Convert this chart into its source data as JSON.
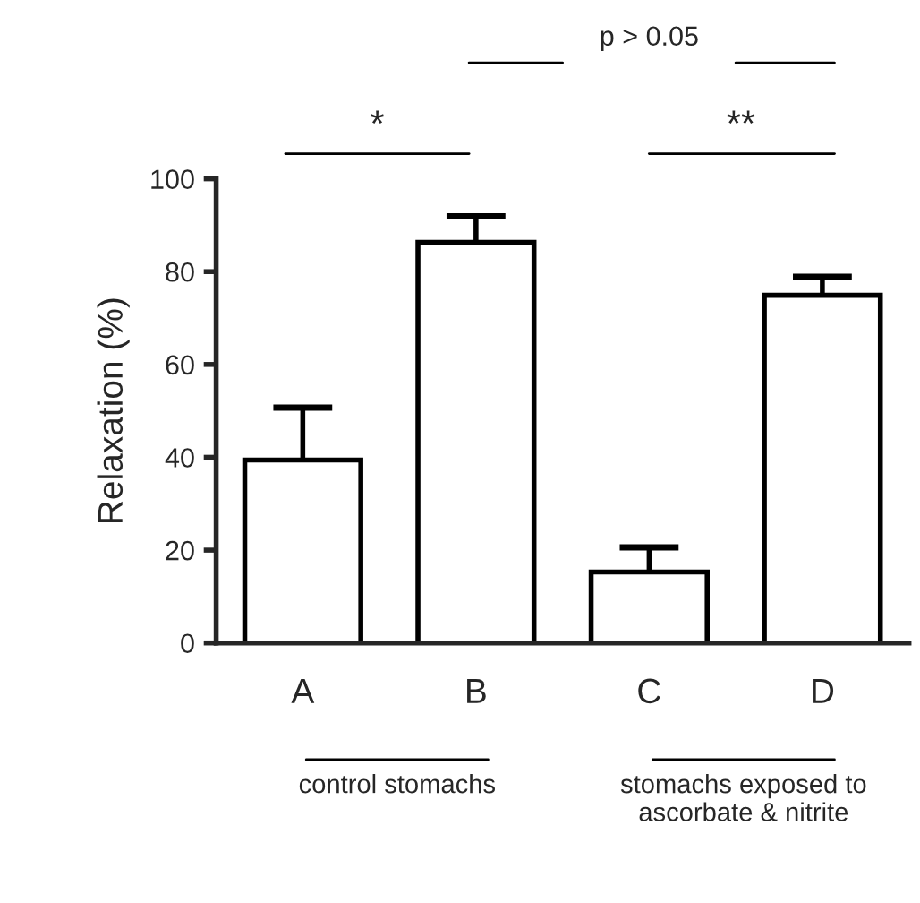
{
  "chart_data": {
    "type": "bar",
    "ylabel": "Relaxation (%)",
    "categories": [
      "A",
      "B",
      "C",
      "D"
    ],
    "values": [
      39.4,
      86.3,
      15.3,
      74.9
    ],
    "errors": [
      [
        39.4,
        50.7
      ],
      [
        86.3,
        91.9
      ],
      [
        15.3,
        20.6
      ],
      [
        74.9,
        78.9
      ]
    ],
    "color": "#ffffff",
    "ylim": [
      0,
      100
    ],
    "yticks": [
      0,
      20,
      40,
      60,
      80,
      100
    ],
    "grid": false,
    "annotations": [
      "*",
      "**",
      "p > 0.05",
      "control stomachs",
      "stomachs exposed to ascorbate & nitrite"
    ]
  }
}
